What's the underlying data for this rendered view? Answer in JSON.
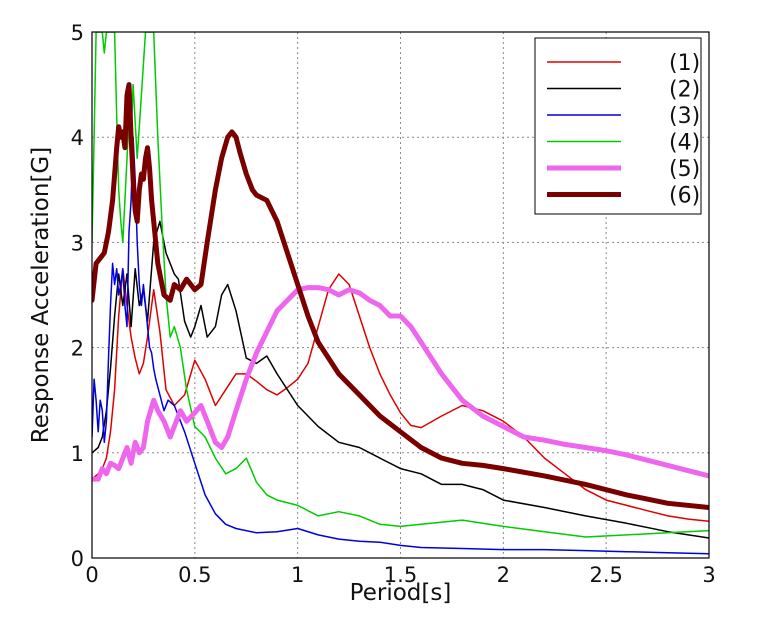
{
  "chart_data": {
    "type": "line",
    "xlabel": "Period[s]",
    "ylabel": "Response Acceleration[G]",
    "xlim": [
      0,
      3
    ],
    "ylim": [
      0,
      5
    ],
    "xticks": [
      0,
      0.5,
      1,
      1.5,
      2,
      2.5,
      3
    ],
    "xtick_labels": [
      "0",
      "0.5",
      "1",
      "1.5",
      "2",
      "2.5",
      "3"
    ],
    "yticks": [
      0,
      1,
      2,
      3,
      4,
      5
    ],
    "ytick_labels": [
      "0",
      "1",
      "2",
      "3",
      "4",
      "5"
    ],
    "grid": true,
    "legend_position": "top-right",
    "series": [
      {
        "name": "(1)",
        "color": "#e00000",
        "width": 1.5,
        "x": [
          0.0,
          0.03,
          0.05,
          0.07,
          0.09,
          0.11,
          0.13,
          0.15,
          0.17,
          0.19,
          0.21,
          0.23,
          0.25,
          0.27,
          0.3,
          0.33,
          0.36,
          0.4,
          0.45,
          0.5,
          0.55,
          0.6,
          0.65,
          0.7,
          0.75,
          0.8,
          0.85,
          0.9,
          0.95,
          1.0,
          1.05,
          1.1,
          1.15,
          1.2,
          1.25,
          1.3,
          1.35,
          1.4,
          1.45,
          1.5,
          1.55,
          1.6,
          1.7,
          1.8,
          1.9,
          2.0,
          2.1,
          2.2,
          2.3,
          2.4,
          2.5,
          2.6,
          2.7,
          2.8,
          2.9,
          3.0
        ],
        "y": [
          0.75,
          0.8,
          0.85,
          0.95,
          1.2,
          1.6,
          2.3,
          2.75,
          2.4,
          2.1,
          1.9,
          1.75,
          1.85,
          2.1,
          2.55,
          2.15,
          1.6,
          1.45,
          1.55,
          1.88,
          1.7,
          1.45,
          1.6,
          1.75,
          1.75,
          1.68,
          1.6,
          1.55,
          1.62,
          1.7,
          1.85,
          2.2,
          2.55,
          2.7,
          2.6,
          2.3,
          2.0,
          1.75,
          1.55,
          1.38,
          1.26,
          1.24,
          1.35,
          1.45,
          1.4,
          1.3,
          1.15,
          0.95,
          0.8,
          0.65,
          0.55,
          0.5,
          0.45,
          0.4,
          0.37,
          0.35
        ]
      },
      {
        "name": "(2)",
        "color": "#000000",
        "width": 1.5,
        "x": [
          0.0,
          0.03,
          0.05,
          0.07,
          0.09,
          0.11,
          0.13,
          0.15,
          0.17,
          0.19,
          0.21,
          0.23,
          0.25,
          0.27,
          0.3,
          0.33,
          0.36,
          0.4,
          0.42,
          0.45,
          0.48,
          0.5,
          0.53,
          0.56,
          0.6,
          0.63,
          0.66,
          0.7,
          0.75,
          0.8,
          0.85,
          0.9,
          1.0,
          1.1,
          1.2,
          1.3,
          1.4,
          1.5,
          1.6,
          1.7,
          1.8,
          1.9,
          2.0,
          2.2,
          2.4,
          2.6,
          2.8,
          3.0
        ],
        "y": [
          1.0,
          1.05,
          1.15,
          1.4,
          1.8,
          2.3,
          2.7,
          2.4,
          2.7,
          2.2,
          2.75,
          2.4,
          2.55,
          2.25,
          3.0,
          3.2,
          2.9,
          2.7,
          2.65,
          2.25,
          2.1,
          2.2,
          2.4,
          2.1,
          2.2,
          2.5,
          2.6,
          2.35,
          1.9,
          1.85,
          1.92,
          1.75,
          1.45,
          1.25,
          1.1,
          1.05,
          0.95,
          0.85,
          0.8,
          0.7,
          0.7,
          0.65,
          0.55,
          0.48,
          0.4,
          0.33,
          0.25,
          0.19
        ]
      },
      {
        "name": "(3)",
        "color": "#0000e0",
        "width": 1.5,
        "x": [
          0.0,
          0.01,
          0.02,
          0.03,
          0.04,
          0.05,
          0.06,
          0.07,
          0.08,
          0.09,
          0.1,
          0.11,
          0.12,
          0.13,
          0.14,
          0.15,
          0.16,
          0.17,
          0.18,
          0.19,
          0.2,
          0.21,
          0.22,
          0.23,
          0.24,
          0.25,
          0.26,
          0.27,
          0.28,
          0.29,
          0.3,
          0.31,
          0.33,
          0.35,
          0.37,
          0.4,
          0.45,
          0.5,
          0.55,
          0.6,
          0.65,
          0.7,
          0.8,
          0.9,
          1.0,
          1.1,
          1.2,
          1.3,
          1.4,
          1.5,
          1.6,
          1.8,
          2.0,
          2.2,
          2.4,
          2.6,
          2.8,
          3.0
        ],
        "y": [
          1.15,
          1.7,
          1.5,
          1.2,
          1.5,
          1.4,
          1.1,
          1.3,
          1.9,
          2.4,
          2.8,
          2.6,
          2.75,
          2.5,
          2.6,
          2.75,
          2.4,
          2.2,
          3.1,
          3.4,
          4.0,
          3.6,
          3.0,
          2.6,
          2.4,
          2.6,
          2.4,
          2.2,
          2.0,
          1.95,
          1.8,
          1.7,
          1.55,
          1.4,
          1.5,
          1.45,
          1.2,
          0.9,
          0.6,
          0.42,
          0.32,
          0.28,
          0.24,
          0.25,
          0.28,
          0.22,
          0.18,
          0.16,
          0.15,
          0.12,
          0.1,
          0.09,
          0.08,
          0.08,
          0.07,
          0.06,
          0.05,
          0.04
        ]
      },
      {
        "name": "(4)",
        "color": "#00cc00",
        "width": 1.5,
        "x": [
          0.0,
          0.01,
          0.02,
          0.03,
          0.04,
          0.05,
          0.06,
          0.07,
          0.08,
          0.09,
          0.1,
          0.11,
          0.12,
          0.13,
          0.14,
          0.15,
          0.16,
          0.17,
          0.18,
          0.19,
          0.2,
          0.22,
          0.24,
          0.26,
          0.28,
          0.3,
          0.32,
          0.34,
          0.36,
          0.38,
          0.4,
          0.43,
          0.46,
          0.5,
          0.55,
          0.6,
          0.65,
          0.7,
          0.75,
          0.8,
          0.85,
          0.9,
          1.0,
          1.1,
          1.2,
          1.3,
          1.4,
          1.5,
          1.6,
          1.8,
          2.0,
          2.2,
          2.4,
          2.6,
          2.8,
          3.0
        ],
        "y": [
          3.0,
          4.0,
          5.0,
          5.0,
          5.0,
          5.0,
          4.8,
          5.0,
          5.0,
          5.0,
          5.0,
          5.0,
          4.2,
          3.5,
          3.2,
          3.0,
          3.4,
          3.8,
          4.2,
          4.0,
          4.5,
          3.8,
          4.4,
          5.0,
          5.0,
          5.0,
          4.0,
          3.2,
          2.5,
          2.1,
          2.2,
          2.0,
          1.6,
          1.25,
          1.15,
          0.95,
          0.8,
          0.85,
          0.95,
          0.72,
          0.6,
          0.55,
          0.5,
          0.4,
          0.44,
          0.4,
          0.32,
          0.3,
          0.32,
          0.36,
          0.3,
          0.25,
          0.2,
          0.22,
          0.24,
          0.26
        ]
      },
      {
        "name": "(5)",
        "color": "#ee66ee",
        "width": 5,
        "x": [
          0.0,
          0.03,
          0.05,
          0.07,
          0.09,
          0.11,
          0.13,
          0.15,
          0.17,
          0.19,
          0.21,
          0.23,
          0.25,
          0.27,
          0.3,
          0.32,
          0.35,
          0.38,
          0.4,
          0.43,
          0.46,
          0.5,
          0.53,
          0.56,
          0.6,
          0.63,
          0.66,
          0.7,
          0.75,
          0.8,
          0.85,
          0.9,
          0.95,
          1.0,
          1.05,
          1.1,
          1.15,
          1.2,
          1.25,
          1.3,
          1.35,
          1.4,
          1.45,
          1.5,
          1.55,
          1.6,
          1.7,
          1.8,
          1.9,
          2.0,
          2.1,
          2.2,
          2.3,
          2.4,
          2.5,
          2.6,
          2.7,
          2.8,
          2.9,
          3.0
        ],
        "y": [
          0.75,
          0.75,
          0.85,
          0.8,
          0.9,
          0.88,
          0.85,
          0.95,
          1.05,
          0.9,
          1.1,
          1.0,
          1.05,
          1.3,
          1.5,
          1.4,
          1.3,
          1.15,
          1.25,
          1.4,
          1.3,
          1.38,
          1.45,
          1.3,
          1.1,
          1.05,
          1.15,
          1.4,
          1.7,
          1.95,
          2.15,
          2.35,
          2.45,
          2.55,
          2.57,
          2.57,
          2.55,
          2.5,
          2.55,
          2.52,
          2.45,
          2.4,
          2.3,
          2.3,
          2.2,
          2.05,
          1.75,
          1.5,
          1.35,
          1.25,
          1.15,
          1.12,
          1.08,
          1.05,
          1.02,
          0.98,
          0.93,
          0.88,
          0.83,
          0.78
        ]
      },
      {
        "name": "(6)",
        "color": "#7a0000",
        "width": 5,
        "x": [
          0.0,
          0.02,
          0.04,
          0.06,
          0.08,
          0.1,
          0.12,
          0.13,
          0.14,
          0.15,
          0.16,
          0.17,
          0.18,
          0.19,
          0.2,
          0.21,
          0.22,
          0.23,
          0.24,
          0.25,
          0.26,
          0.27,
          0.28,
          0.29,
          0.3,
          0.32,
          0.35,
          0.38,
          0.4,
          0.43,
          0.46,
          0.5,
          0.53,
          0.56,
          0.6,
          0.63,
          0.66,
          0.68,
          0.7,
          0.72,
          0.75,
          0.78,
          0.8,
          0.85,
          0.9,
          0.95,
          1.0,
          1.05,
          1.1,
          1.2,
          1.3,
          1.4,
          1.5,
          1.6,
          1.7,
          1.8,
          1.9,
          2.0,
          2.2,
          2.4,
          2.6,
          2.8,
          3.0
        ],
        "y": [
          2.45,
          2.8,
          2.85,
          2.9,
          3.1,
          3.4,
          3.9,
          4.1,
          4.0,
          4.05,
          3.9,
          4.4,
          4.5,
          4.0,
          3.6,
          3.3,
          3.2,
          3.5,
          3.65,
          3.6,
          3.8,
          3.9,
          3.7,
          3.4,
          3.2,
          2.8,
          2.5,
          2.45,
          2.6,
          2.55,
          2.65,
          2.55,
          2.6,
          3.0,
          3.5,
          3.8,
          4.0,
          4.05,
          4.0,
          3.85,
          3.65,
          3.5,
          3.45,
          3.4,
          3.2,
          2.9,
          2.6,
          2.3,
          2.05,
          1.75,
          1.55,
          1.35,
          1.2,
          1.05,
          0.95,
          0.9,
          0.88,
          0.85,
          0.78,
          0.7,
          0.6,
          0.52,
          0.48
        ]
      }
    ]
  }
}
